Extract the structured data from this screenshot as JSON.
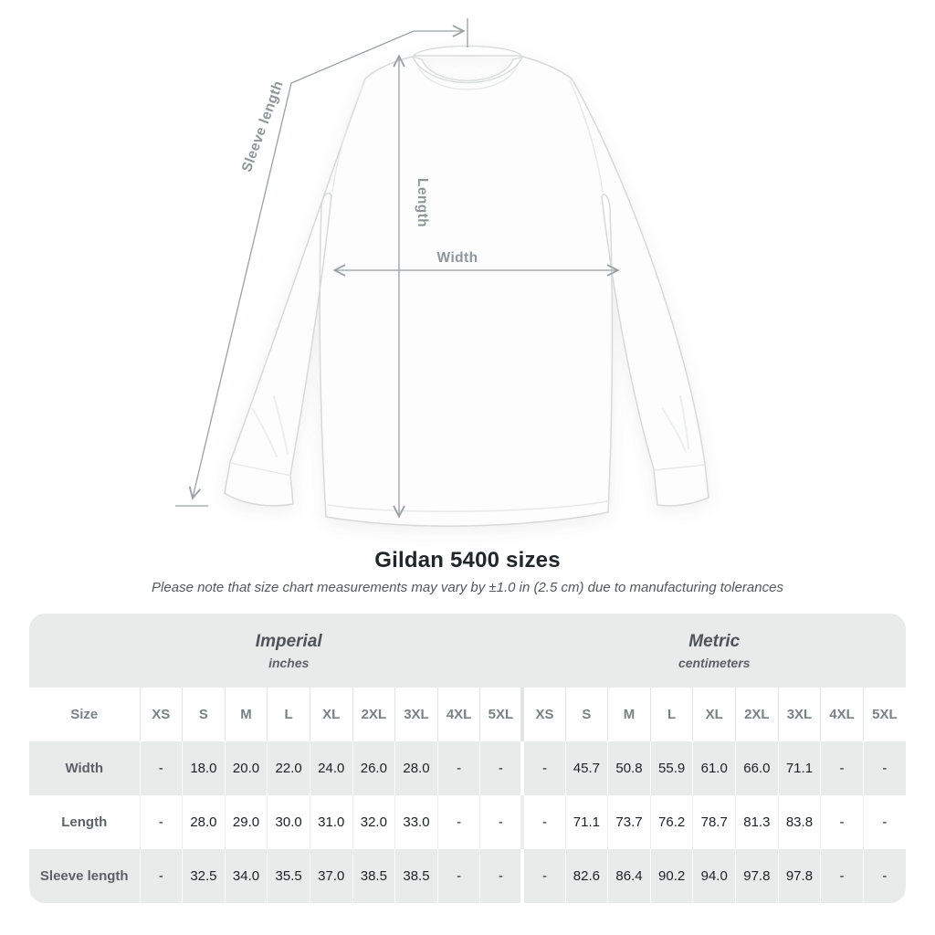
{
  "page": {
    "title": "Gildan 5400 sizes",
    "note": "Please note that size chart measurements may vary by ±1.0 in (2.5 cm) due to manufacturing tolerances"
  },
  "diagram": {
    "labels": {
      "sleeve_length": "Sleeve length",
      "length": "Length",
      "width": "Width"
    }
  },
  "colors": {
    "band_gray": "#e9eaea",
    "annotation_gray": "#9aa0a4",
    "label_gray": "#8f959a",
    "value_dark": "#1d2023",
    "shirt_stroke": "#d7d9da"
  },
  "table": {
    "size_header": "Size",
    "groups": [
      {
        "label": "Imperial",
        "unit": "inches"
      },
      {
        "label": "Metric",
        "unit": "centimeters"
      }
    ],
    "sizes": [
      "XS",
      "S",
      "M",
      "L",
      "XL",
      "2XL",
      "3XL",
      "4XL",
      "5XL"
    ],
    "rows": [
      {
        "label": "Width",
        "imperial": [
          "-",
          "18.0",
          "20.0",
          "22.0",
          "24.0",
          "26.0",
          "28.0",
          "-",
          "-"
        ],
        "metric": [
          "-",
          "45.7",
          "50.8",
          "55.9",
          "61.0",
          "66.0",
          "71.1",
          "-",
          "-"
        ]
      },
      {
        "label": "Length",
        "imperial": [
          "-",
          "28.0",
          "29.0",
          "30.0",
          "31.0",
          "32.0",
          "33.0",
          "-",
          "-"
        ],
        "metric": [
          "-",
          "71.1",
          "73.7",
          "76.2",
          "78.7",
          "81.3",
          "83.8",
          "-",
          "-"
        ]
      },
      {
        "label": "Sleeve length",
        "imperial": [
          "-",
          "32.5",
          "34.0",
          "35.5",
          "37.0",
          "38.5",
          "38.5",
          "-",
          "-"
        ],
        "metric": [
          "-",
          "82.6",
          "86.4",
          "90.2",
          "94.0",
          "97.8",
          "97.8",
          "-",
          "-"
        ]
      }
    ]
  },
  "chart_data": {
    "type": "table",
    "title": "Gildan 5400 sizes",
    "subtitle": "Please note that size chart measurements may vary by ±1.0 in (2.5 cm) due to manufacturing tolerances",
    "column_groups": [
      "Imperial (inches)",
      "Metric (centimeters)"
    ],
    "columns": [
      "Size",
      "XS",
      "S",
      "M",
      "L",
      "XL",
      "2XL",
      "3XL",
      "4XL",
      "5XL",
      "XS",
      "S",
      "M",
      "L",
      "XL",
      "2XL",
      "3XL",
      "4XL",
      "5XL"
    ],
    "rows": [
      [
        "Width",
        "-",
        "18.0",
        "20.0",
        "22.0",
        "24.0",
        "26.0",
        "28.0",
        "-",
        "-",
        "-",
        "45.7",
        "50.8",
        "55.9",
        "61.0",
        "66.0",
        "71.1",
        "-",
        "-"
      ],
      [
        "Length",
        "-",
        "28.0",
        "29.0",
        "30.0",
        "31.0",
        "32.0",
        "33.0",
        "-",
        "-",
        "-",
        "71.1",
        "73.7",
        "76.2",
        "78.7",
        "81.3",
        "83.8",
        "-",
        "-"
      ],
      [
        "Sleeve length",
        "-",
        "32.5",
        "34.0",
        "35.5",
        "37.0",
        "38.5",
        "38.5",
        "-",
        "-",
        "-",
        "82.6",
        "86.4",
        "90.2",
        "94.0",
        "97.8",
        "97.8",
        "-",
        "-"
      ]
    ]
  }
}
